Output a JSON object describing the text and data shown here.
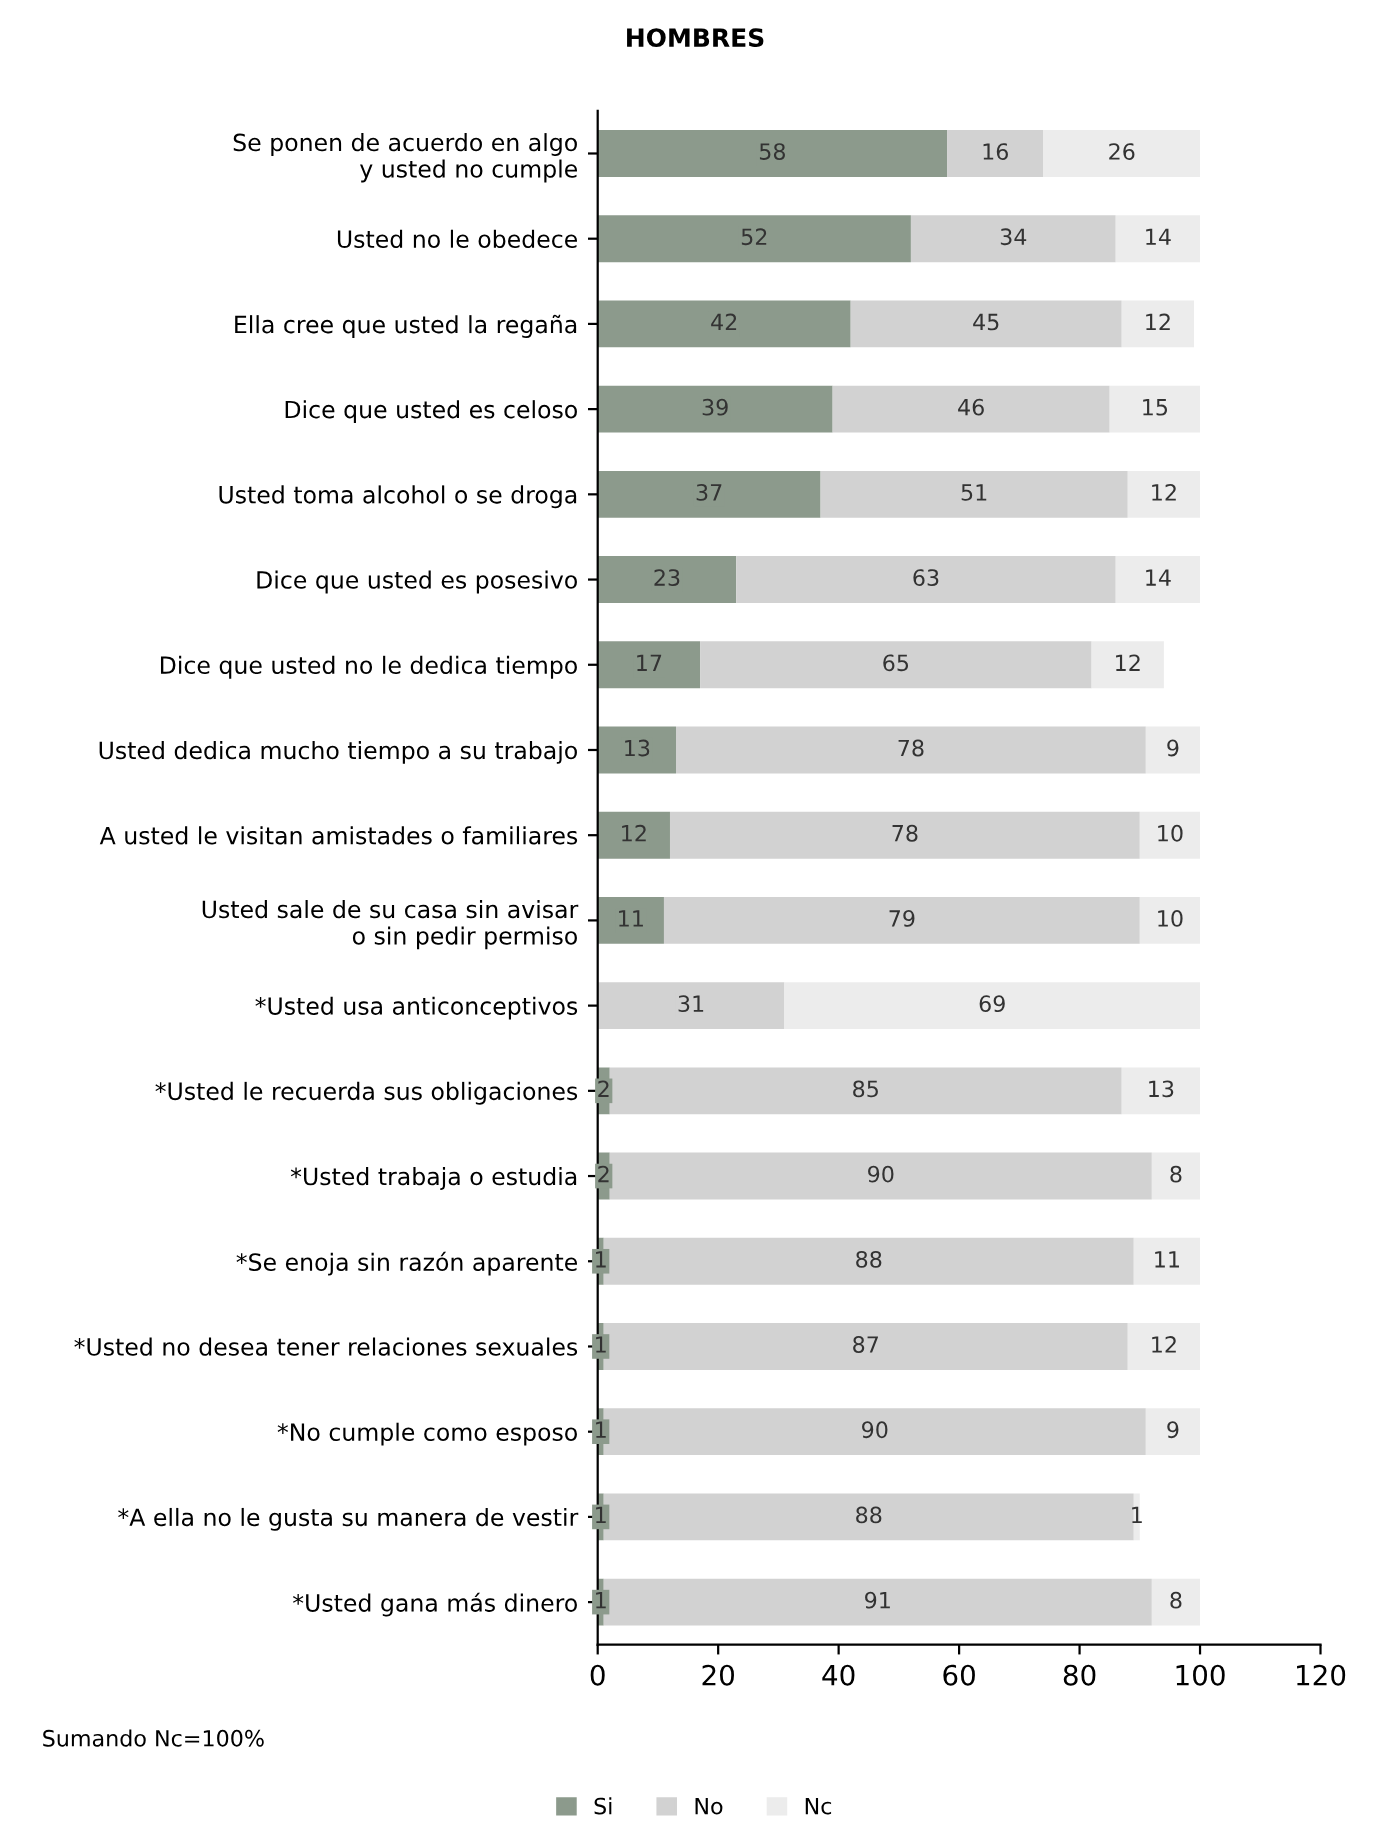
{
  "chart_data": {
    "type": "bar",
    "orientation": "horizontal",
    "stacked": true,
    "title": "HOMBRES",
    "categories": [
      "Se ponen de acuerdo en algo\ny usted no cumple",
      "Usted no le obedece",
      "Ella cree que usted la regaña",
      "Dice que usted es celoso",
      "Usted toma alcohol o se droga",
      "Dice que usted es posesivo",
      "Dice que usted no le dedica tiempo",
      "Usted dedica mucho tiempo a su trabajo",
      "A usted le visitan amistades o familiares",
      "Usted sale de su casa sin avisar\no sin pedir permiso",
      "*Usted usa anticonceptivos",
      "*Usted le recuerda sus obligaciones",
      "*Usted trabaja o estudia",
      "*Se enoja sin razón aparente",
      "*Usted no desea tener relaciones sexuales",
      "*No cumple como esposo",
      "*A ella no le gusta su manera de vestir",
      "*Usted gana más dinero"
    ],
    "series": [
      {
        "name": "Si",
        "color": "#8c9a8c",
        "values": [
          58,
          52,
          42,
          39,
          37,
          23,
          17,
          13,
          12,
          11,
          0,
          2,
          2,
          1,
          1,
          1,
          1,
          1
        ],
        "value_labels": [
          "58",
          "52",
          "42",
          "39",
          "37",
          "23",
          "17",
          "13",
          "12",
          "11",
          null,
          "2",
          "2",
          "1",
          "1",
          "1",
          "1",
          "1"
        ]
      },
      {
        "name": "No",
        "color": "#d2d2d2",
        "values": [
          16,
          34,
          45,
          46,
          51,
          63,
          65,
          78,
          78,
          79,
          31,
          85,
          90,
          88,
          87,
          90,
          88,
          91
        ],
        "value_labels": [
          "16",
          "34",
          "45",
          "46",
          "51",
          "63",
          "65",
          "78",
          "78",
          "79",
          "31",
          "85",
          "90",
          "88",
          "87",
          "90",
          "88",
          "91"
        ]
      },
      {
        "name": "Nc",
        "color": "#ececec",
        "values": [
          26,
          14,
          12,
          15,
          12,
          14,
          12,
          9,
          10,
          10,
          69,
          13,
          8,
          11,
          12,
          9,
          1,
          8
        ],
        "value_labels": [
          "26",
          "14",
          "12",
          "15",
          "12",
          "14",
          "12",
          "9",
          "10",
          "10",
          "69",
          "13",
          "8",
          "11",
          "12",
          "9",
          "1",
          "8"
        ]
      }
    ],
    "xlim": [
      0,
      120
    ],
    "xticks": [
      0,
      20,
      40,
      60,
      80,
      100,
      120
    ],
    "grid": false,
    "legend": "bottom",
    "annotations": [
      "Sumando Nc=100%"
    ]
  }
}
